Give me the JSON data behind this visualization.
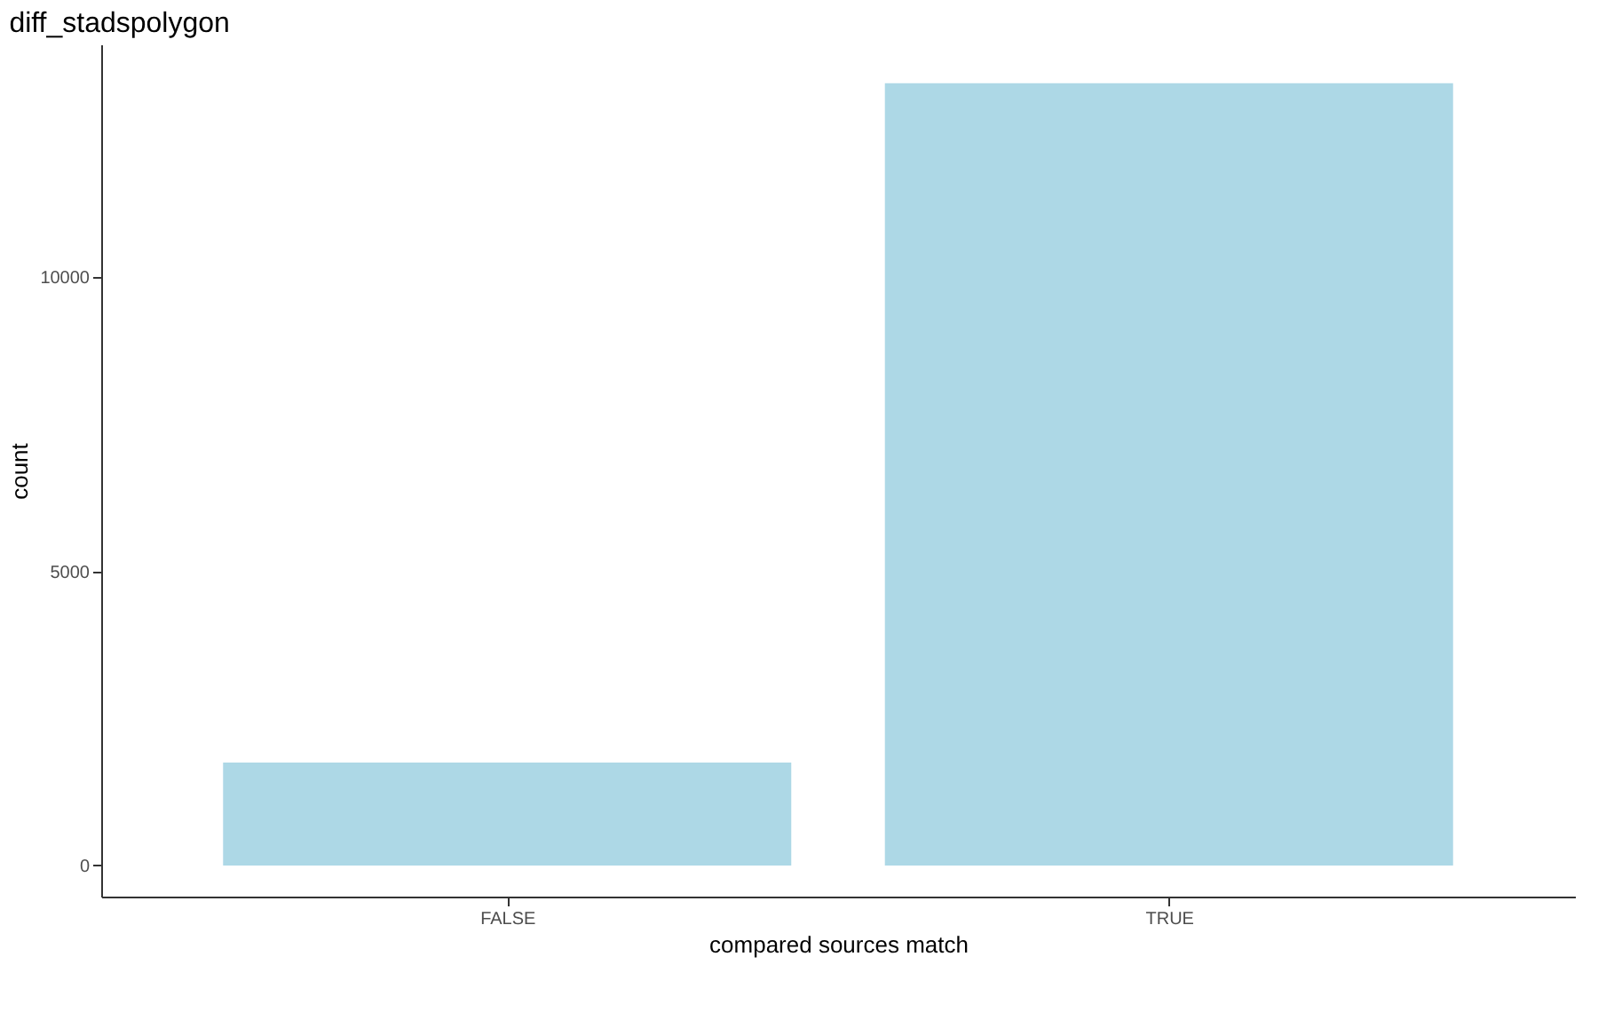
{
  "chart_data": {
    "type": "bar",
    "title": "diff_stadspolygon",
    "xlabel": "compared sources match",
    "ylabel": "count",
    "categories": [
      "FALSE",
      "TRUE"
    ],
    "values": [
      1750,
      13300
    ],
    "color": "#add8e6",
    "ylim": [
      -530,
      13960
    ],
    "yticks": [
      0,
      5000,
      10000
    ],
    "grid": false
  }
}
